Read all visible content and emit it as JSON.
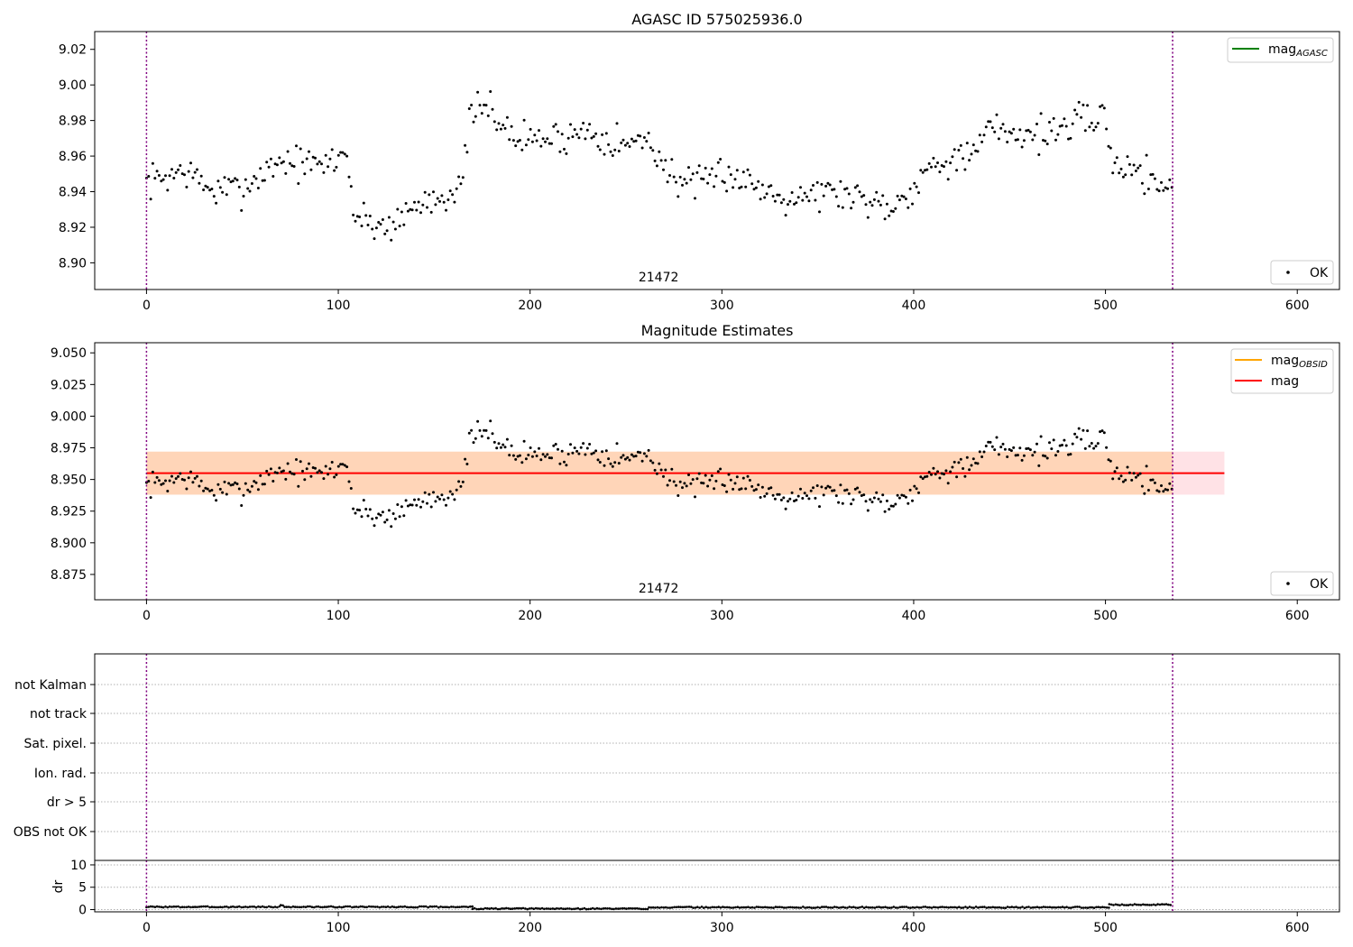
{
  "chart_data": [
    {
      "type": "scatter",
      "title": "AGASC ID 575025936.0",
      "xlim": [
        -27,
        622
      ],
      "ylim": [
        8.885,
        9.03
      ],
      "xticks": [
        0,
        100,
        200,
        300,
        400,
        500,
        600
      ],
      "yticks": [
        8.9,
        8.92,
        8.94,
        8.96,
        8.98,
        9.0,
        9.02
      ],
      "ytick_labels": [
        "8.90",
        "8.92",
        "8.94",
        "8.96",
        "8.98",
        "9.00",
        "9.02"
      ],
      "vlines": [
        0,
        535
      ],
      "annotation": {
        "text": "21472",
        "x": 267
      },
      "legend_upper": [
        {
          "label": "mag",
          "sub": "AGASC",
          "color": "#008000"
        }
      ],
      "legend_lower": [
        {
          "label": "OK"
        }
      ],
      "series": {
        "name": "OK",
        "anchors": [
          [
            0,
            8.945
          ],
          [
            20,
            8.952
          ],
          [
            35,
            8.94
          ],
          [
            50,
            8.942
          ],
          [
            70,
            8.958
          ],
          [
            90,
            8.954
          ],
          [
            105,
            8.962
          ],
          [
            108,
            8.926
          ],
          [
            125,
            8.92
          ],
          [
            145,
            8.935
          ],
          [
            165,
            8.942
          ],
          [
            168,
            8.982
          ],
          [
            180,
            8.988
          ],
          [
            190,
            8.97
          ],
          [
            215,
            8.97
          ],
          [
            230,
            8.975
          ],
          [
            250,
            8.966
          ],
          [
            262,
            8.97
          ],
          [
            272,
            8.95
          ],
          [
            290,
            8.942
          ],
          [
            300,
            8.952
          ],
          [
            330,
            8.938
          ],
          [
            360,
            8.94
          ],
          [
            390,
            8.932
          ],
          [
            400,
            8.944
          ],
          [
            410,
            8.955
          ],
          [
            420,
            8.96
          ],
          [
            430,
            8.958
          ],
          [
            440,
            8.976
          ],
          [
            460,
            8.972
          ],
          [
            480,
            8.976
          ],
          [
            495,
            8.982
          ],
          [
            500,
            8.985
          ],
          [
            502,
            8.958
          ],
          [
            520,
            8.95
          ],
          [
            535,
            8.942
          ]
        ],
        "seed": 7,
        "noise": 0.007,
        "step": 1.1
      }
    },
    {
      "type": "scatter",
      "title": "Magnitude Estimates",
      "xlim": [
        -27,
        622
      ],
      "ylim": [
        8.855,
        9.058
      ],
      "xticks": [
        0,
        100,
        200,
        300,
        400,
        500,
        600
      ],
      "yticks": [
        8.875,
        8.9,
        8.925,
        8.95,
        8.975,
        9.0,
        9.025,
        9.05
      ],
      "ytick_labels": [
        "8.875",
        "8.900",
        "8.925",
        "8.950",
        "8.975",
        "9.000",
        "9.025",
        "9.050"
      ],
      "vlines": [
        0,
        535
      ],
      "annotation": {
        "text": "21472",
        "x": 267
      },
      "mag_line": {
        "value": 8.955,
        "color": "#ff0000"
      },
      "bands": [
        {
          "x0": 0,
          "x1": 562,
          "y0": 8.938,
          "y1": 8.972,
          "color": "#ffb6c1",
          "opacity": 0.4
        },
        {
          "x0": 0,
          "x1": 535,
          "y0": 8.938,
          "y1": 8.972,
          "color": "#ffa500",
          "opacity": 0.2
        }
      ],
      "legend_upper": [
        {
          "label": "mag",
          "sub": "OBSID",
          "color": "#ffa500"
        },
        {
          "label": "mag",
          "sub": "",
          "color": "#ff0000"
        }
      ],
      "legend_lower": [
        {
          "label": "OK"
        }
      ],
      "series": {
        "name": "OK",
        "anchors": [
          [
            0,
            8.945
          ],
          [
            20,
            8.952
          ],
          [
            35,
            8.94
          ],
          [
            50,
            8.942
          ],
          [
            70,
            8.958
          ],
          [
            90,
            8.954
          ],
          [
            105,
            8.962
          ],
          [
            108,
            8.926
          ],
          [
            125,
            8.92
          ],
          [
            145,
            8.935
          ],
          [
            165,
            8.942
          ],
          [
            168,
            8.982
          ],
          [
            180,
            8.988
          ],
          [
            190,
            8.97
          ],
          [
            215,
            8.97
          ],
          [
            230,
            8.975
          ],
          [
            250,
            8.966
          ],
          [
            262,
            8.97
          ],
          [
            272,
            8.95
          ],
          [
            290,
            8.942
          ],
          [
            300,
            8.952
          ],
          [
            330,
            8.938
          ],
          [
            360,
            8.94
          ],
          [
            390,
            8.932
          ],
          [
            400,
            8.944
          ],
          [
            410,
            8.955
          ],
          [
            420,
            8.96
          ],
          [
            430,
            8.958
          ],
          [
            440,
            8.976
          ],
          [
            460,
            8.972
          ],
          [
            480,
            8.976
          ],
          [
            495,
            8.982
          ],
          [
            500,
            8.985
          ],
          [
            502,
            8.958
          ],
          [
            520,
            8.95
          ],
          [
            535,
            8.942
          ]
        ],
        "seed": 7,
        "noise": 0.007,
        "step": 1.1
      }
    },
    {
      "type": "table",
      "xlim": [
        -27,
        622
      ],
      "flag_labels": [
        "not Kalman",
        "not track",
        "Sat. pixel.",
        "Ion. rad.",
        "dr > 5",
        "OBS not OK"
      ],
      "vlines": [
        0,
        535
      ]
    },
    {
      "type": "line",
      "xlim": [
        -27,
        622
      ],
      "ylim": [
        -0.5,
        11
      ],
      "xticks": [
        0,
        100,
        200,
        300,
        400,
        500,
        600
      ],
      "yticks": [
        0,
        5,
        10
      ],
      "ytick_labels": [
        "0",
        "5",
        "10"
      ],
      "ylabel": "dr",
      "vlines": [
        0,
        535
      ],
      "series": {
        "segments": [
          [
            0,
            70,
            0.6
          ],
          [
            70,
            72,
            1.0
          ],
          [
            72,
            170,
            0.6
          ],
          [
            170,
            262,
            0.2
          ],
          [
            262,
            502,
            0.5
          ],
          [
            502,
            535,
            1.1
          ]
        ],
        "step": 1.1
      }
    }
  ]
}
